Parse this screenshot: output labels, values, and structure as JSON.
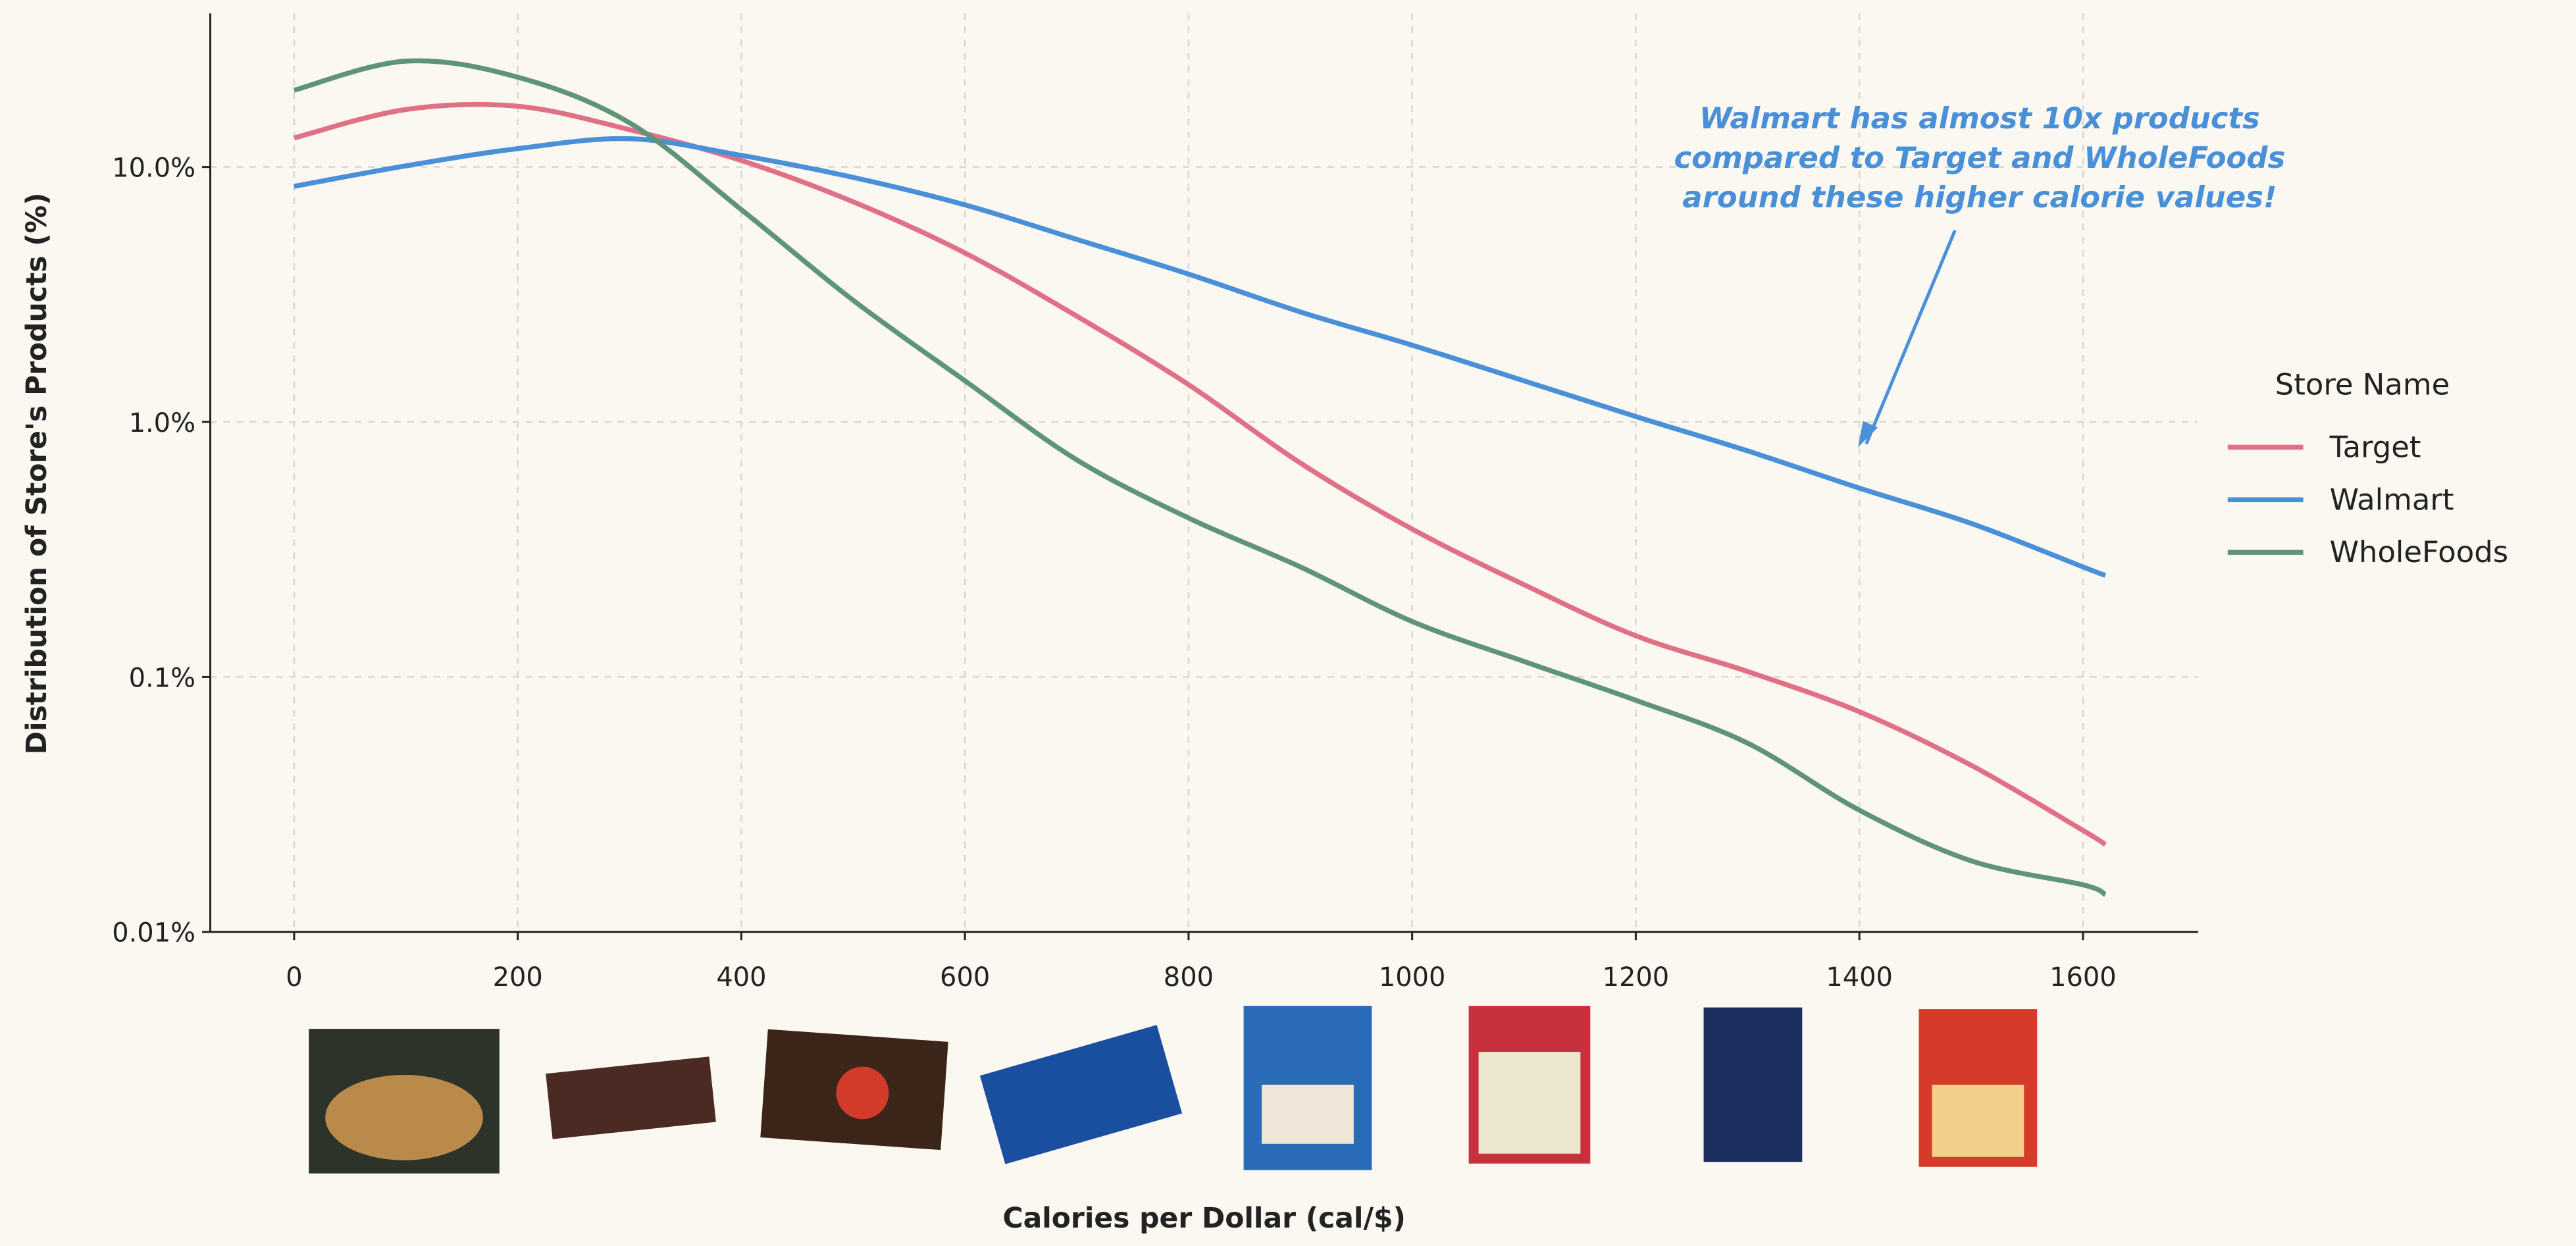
{
  "chart_data": {
    "type": "line",
    "x_label": "Calories per Dollar (cal/$)",
    "y_label": "Distribution of Store's Products (%)",
    "x": [
      0,
      100,
      200,
      300,
      400,
      500,
      600,
      700,
      800,
      900,
      1000,
      1100,
      1200,
      1300,
      1400,
      1500,
      1600,
      1620
    ],
    "series": [
      {
        "name": "Target",
        "color": "#e07085",
        "values": [
          13.0,
          16.8,
          17.3,
          14.0,
          10.6,
          7.3,
          4.6,
          2.6,
          1.4,
          0.69,
          0.38,
          0.23,
          0.145,
          0.105,
          0.073,
          0.045,
          0.025,
          0.022
        ]
      },
      {
        "name": "Walmart",
        "color": "#4a90d9",
        "values": [
          8.4,
          10.1,
          11.8,
          12.9,
          11.1,
          9.1,
          7.1,
          5.2,
          3.8,
          2.7,
          2.0,
          1.45,
          1.05,
          0.77,
          0.55,
          0.4,
          0.27,
          0.25
        ]
      },
      {
        "name": "WholeFoods",
        "color": "#5f9478",
        "values": [
          20,
          26,
          22.5,
          14.9,
          6.8,
          3.0,
          1.45,
          0.71,
          0.42,
          0.27,
          0.165,
          0.115,
          0.081,
          0.055,
          0.03,
          0.019,
          0.0153,
          0.014
        ]
      }
    ],
    "xlim": [
      -75,
      1703
    ],
    "ylim": [
      0.01,
      40
    ],
    "log_y": true,
    "xticks": [
      0,
      200,
      400,
      600,
      800,
      1000,
      1200,
      1400,
      1600
    ],
    "yticks": [
      {
        "value": 0.01,
        "label": "0.01%"
      },
      {
        "value": 0.1,
        "label": "0.1%"
      },
      {
        "value": 1,
        "label": "1.0%"
      },
      {
        "value": 10,
        "label": "10.0%"
      }
    ],
    "grid": true,
    "legend_title": "Store Name",
    "legend_position": "right",
    "annotation": {
      "lines": [
        "Walmart has almost 10x products",
        "compared to Target and WholeFoods",
        "around these higher calorie values!"
      ],
      "color": "#4a90d9"
    }
  }
}
